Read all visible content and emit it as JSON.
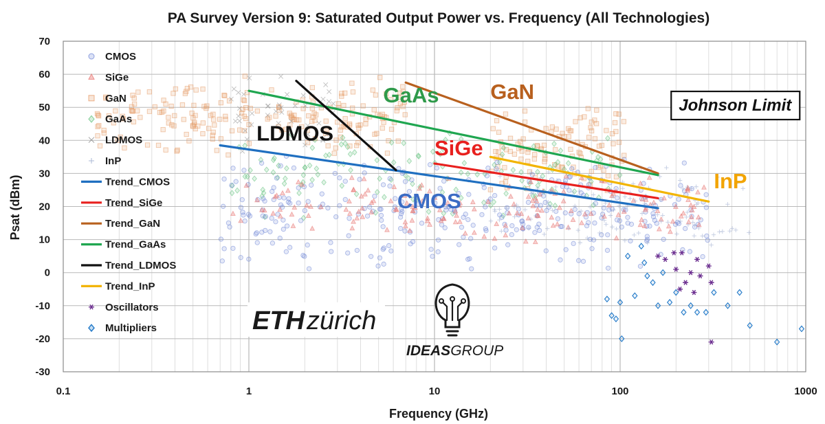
{
  "chart_data": {
    "type": "scatter",
    "title": "PA Survey Version 9: Saturated Output Power vs. Frequency (All Technologies)",
    "xlabel": "Frequency (GHz)",
    "ylabel": "Psat (dBm)",
    "xscale": "log",
    "xlim": [
      0.1,
      1000
    ],
    "ylim": [
      -30,
      70
    ],
    "xticks": [
      0.1,
      1,
      10,
      100,
      1000
    ],
    "xtick_labels": [
      "0.1",
      "1",
      "10",
      "100",
      "1000"
    ],
    "yticks": [
      -30,
      -20,
      -10,
      0,
      10,
      20,
      30,
      40,
      50,
      60,
      70
    ],
    "grid": "major-and-minor",
    "legend_position": "top-left",
    "legend": [
      {
        "label": "CMOS",
        "marker": "circle",
        "color": "#6f86d6"
      },
      {
        "label": "SiGe",
        "marker": "triangle",
        "color": "#e8736f"
      },
      {
        "label": "GaN",
        "marker": "square",
        "color": "#e59a66"
      },
      {
        "label": "GaAs",
        "marker": "diamond",
        "color": "#5fc07a"
      },
      {
        "label": "LDMOS",
        "marker": "x",
        "color": "#8a8a8a"
      },
      {
        "label": "InP",
        "marker": "plus",
        "color": "#8fa0c8"
      },
      {
        "label": "Trend_CMOS",
        "marker": "line",
        "color": "#1f6fc0"
      },
      {
        "label": "Trend_SiGe",
        "marker": "line",
        "color": "#e8201e"
      },
      {
        "label": "Trend_GaN",
        "marker": "line",
        "color": "#b8601e"
      },
      {
        "label": "Trend_GaAs",
        "marker": "line",
        "color": "#1fa650"
      },
      {
        "label": "Trend_LDMOS",
        "marker": "line",
        "color": "#111111"
      },
      {
        "label": "Trend_InP",
        "marker": "line",
        "color": "#f2b400"
      },
      {
        "label": "Oscillators",
        "marker": "star",
        "color": "#6b2d8f"
      },
      {
        "label": "Multipliers",
        "marker": "diamond",
        "color": "#1f78c8"
      }
    ],
    "trend_lines": [
      {
        "name": "Trend_CMOS",
        "color": "#1f6fc0",
        "x": [
          0.7,
          160
        ],
        "y": [
          38.5,
          19.5
        ]
      },
      {
        "name": "Trend_SiGe",
        "color": "#e8201e",
        "x": [
          10,
          160
        ],
        "y": [
          33,
          22.5
        ]
      },
      {
        "name": "Trend_GaN",
        "color": "#b8601e",
        "x": [
          7,
          160
        ],
        "y": [
          57.5,
          30
        ]
      },
      {
        "name": "Trend_GaAs",
        "color": "#1fa650",
        "x": [
          1,
          160
        ],
        "y": [
          55,
          29.5
        ]
      },
      {
        "name": "Trend_LDMOS",
        "color": "#111111",
        "x": [
          1.8,
          6.2
        ],
        "y": [
          58,
          31
        ]
      },
      {
        "name": "Trend_InP",
        "color": "#f2b400",
        "x": [
          20,
          300
        ],
        "y": [
          35,
          21.5
        ]
      }
    ],
    "clusters": [
      {
        "series": "GaN",
        "x_range": [
          0.15,
          7
        ],
        "y_range": [
          34,
          60
        ],
        "n": 220
      },
      {
        "series": "GaN",
        "x_range": [
          20,
          110
        ],
        "y_range": [
          24,
          52
        ],
        "n": 110
      },
      {
        "series": "GaAs",
        "x_range": [
          0.8,
          100
        ],
        "y_range": [
          15,
          45
        ],
        "n": 140
      },
      {
        "series": "CMOS",
        "x_range": [
          0.7,
          300
        ],
        "y_range": [
          0,
          36
        ],
        "n": 330
      },
      {
        "series": "SiGe",
        "x_range": [
          0.8,
          300
        ],
        "y_range": [
          8,
          30
        ],
        "n": 170
      },
      {
        "series": "InP",
        "x_range": [
          20,
          500
        ],
        "y_range": [
          6,
          34
        ],
        "n": 110
      },
      {
        "series": "LDMOS",
        "x_range": [
          0.8,
          3
        ],
        "y_range": [
          35,
          61
        ],
        "n": 45
      }
    ],
    "oscillators": [
      {
        "x": 160,
        "y": 5
      },
      {
        "x": 175,
        "y": 4
      },
      {
        "x": 195,
        "y": 6
      },
      {
        "x": 200,
        "y": 1
      },
      {
        "x": 210,
        "y": -5
      },
      {
        "x": 215,
        "y": 6
      },
      {
        "x": 225,
        "y": -3
      },
      {
        "x": 240,
        "y": 0
      },
      {
        "x": 250,
        "y": -6
      },
      {
        "x": 260,
        "y": 4
      },
      {
        "x": 270,
        "y": -1
      },
      {
        "x": 300,
        "y": 2
      },
      {
        "x": 310,
        "y": -3
      },
      {
        "x": 310,
        "y": -21
      }
    ],
    "multipliers": [
      {
        "x": 85,
        "y": -8
      },
      {
        "x": 90,
        "y": -13
      },
      {
        "x": 95,
        "y": -14
      },
      {
        "x": 100,
        "y": -9
      },
      {
        "x": 102,
        "y": -20
      },
      {
        "x": 110,
        "y": 5
      },
      {
        "x": 120,
        "y": -7
      },
      {
        "x": 130,
        "y": 8
      },
      {
        "x": 135,
        "y": 3
      },
      {
        "x": 140,
        "y": -1
      },
      {
        "x": 150,
        "y": -3
      },
      {
        "x": 160,
        "y": -10
      },
      {
        "x": 170,
        "y": 0
      },
      {
        "x": 185,
        "y": -9
      },
      {
        "x": 200,
        "y": -6
      },
      {
        "x": 220,
        "y": -12
      },
      {
        "x": 240,
        "y": -10
      },
      {
        "x": 260,
        "y": -12
      },
      {
        "x": 290,
        "y": -12
      },
      {
        "x": 320,
        "y": -6
      },
      {
        "x": 380,
        "y": -10
      },
      {
        "x": 440,
        "y": -6
      },
      {
        "x": 500,
        "y": -16
      },
      {
        "x": 700,
        "y": -21
      },
      {
        "x": 950,
        "y": -17
      }
    ],
    "annotations": [
      {
        "text": "LDMOS",
        "x": 1.1,
        "y": 40,
        "color": "#111111"
      },
      {
        "text": "GaAs",
        "x": 5.3,
        "y": 51.5,
        "color": "#2e9a4a"
      },
      {
        "text": "GaN",
        "x": 20,
        "y": 52.5,
        "color": "#b8601e"
      },
      {
        "text": "SiGe",
        "x": 10,
        "y": 35.5,
        "color": "#e8201e"
      },
      {
        "text": "CMOS",
        "x": 6.3,
        "y": 19.5,
        "color": "#3b6cc4"
      },
      {
        "text": "InP",
        "x": 320,
        "y": 25.5,
        "color": "#f2a400"
      },
      {
        "text": "Johnson Limit",
        "x": 190,
        "y": 49,
        "color": "#111111",
        "boxed": true
      }
    ],
    "logos": {
      "eth_bold": "ETH",
      "eth_rest": "zürich",
      "ideas_bold": "IDEAS",
      "ideas_rest": "GROUP"
    }
  }
}
